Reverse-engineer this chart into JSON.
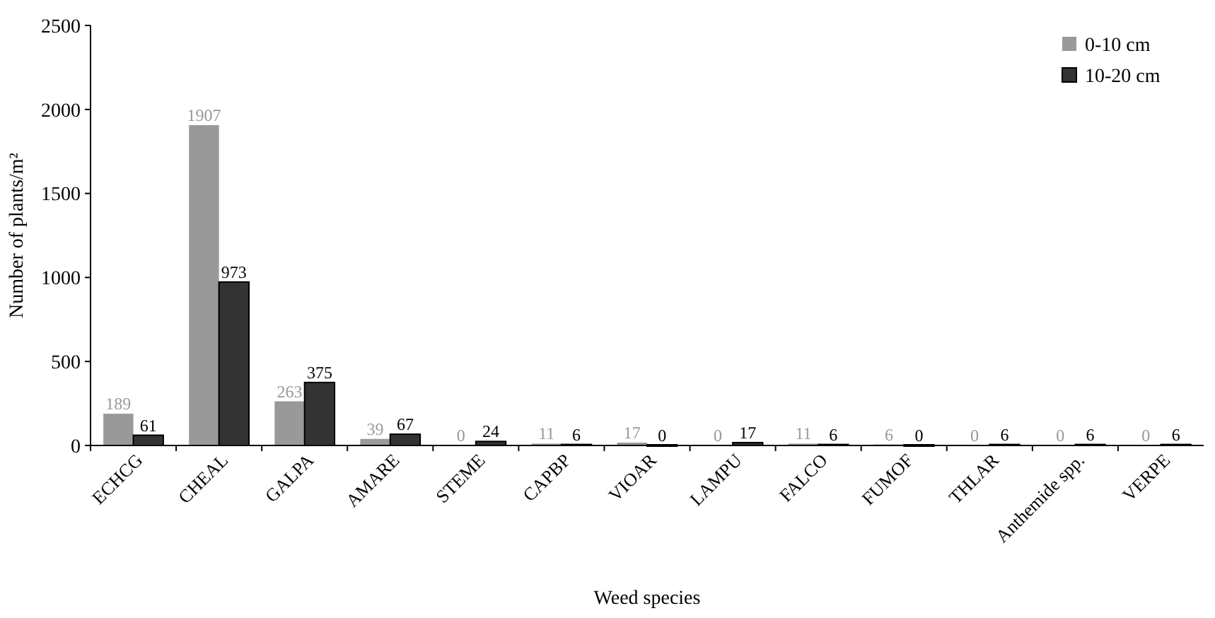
{
  "chart_data": {
    "type": "bar",
    "xlabel": "Weed species",
    "ylabel": "Number of plants/m²",
    "categories": [
      "ECHCG",
      "CHEAL",
      "GALPA",
      "AMARE",
      "STEME",
      "CAPBP",
      "VIOAR",
      "LAMPU",
      "FALCO",
      "FUMOF",
      "THLAR",
      "Anthemide spp.",
      "VERPE"
    ],
    "series": [
      {
        "name": "0-10 cm",
        "color": "#999999",
        "values": [
          189,
          1907,
          263,
          39,
          0,
          11,
          17,
          0,
          11,
          6,
          0,
          0,
          0
        ]
      },
      {
        "name": "10-20 cm",
        "color": "#333333",
        "values": [
          61,
          973,
          375,
          67,
          24,
          6,
          0,
          17,
          6,
          0,
          6,
          6,
          6
        ]
      }
    ],
    "ylim": [
      0,
      2500
    ],
    "yticks": [
      0,
      500,
      1000,
      1500,
      2000,
      2500
    ],
    "grid": false,
    "legend": "top right",
    "data_labels": true
  }
}
